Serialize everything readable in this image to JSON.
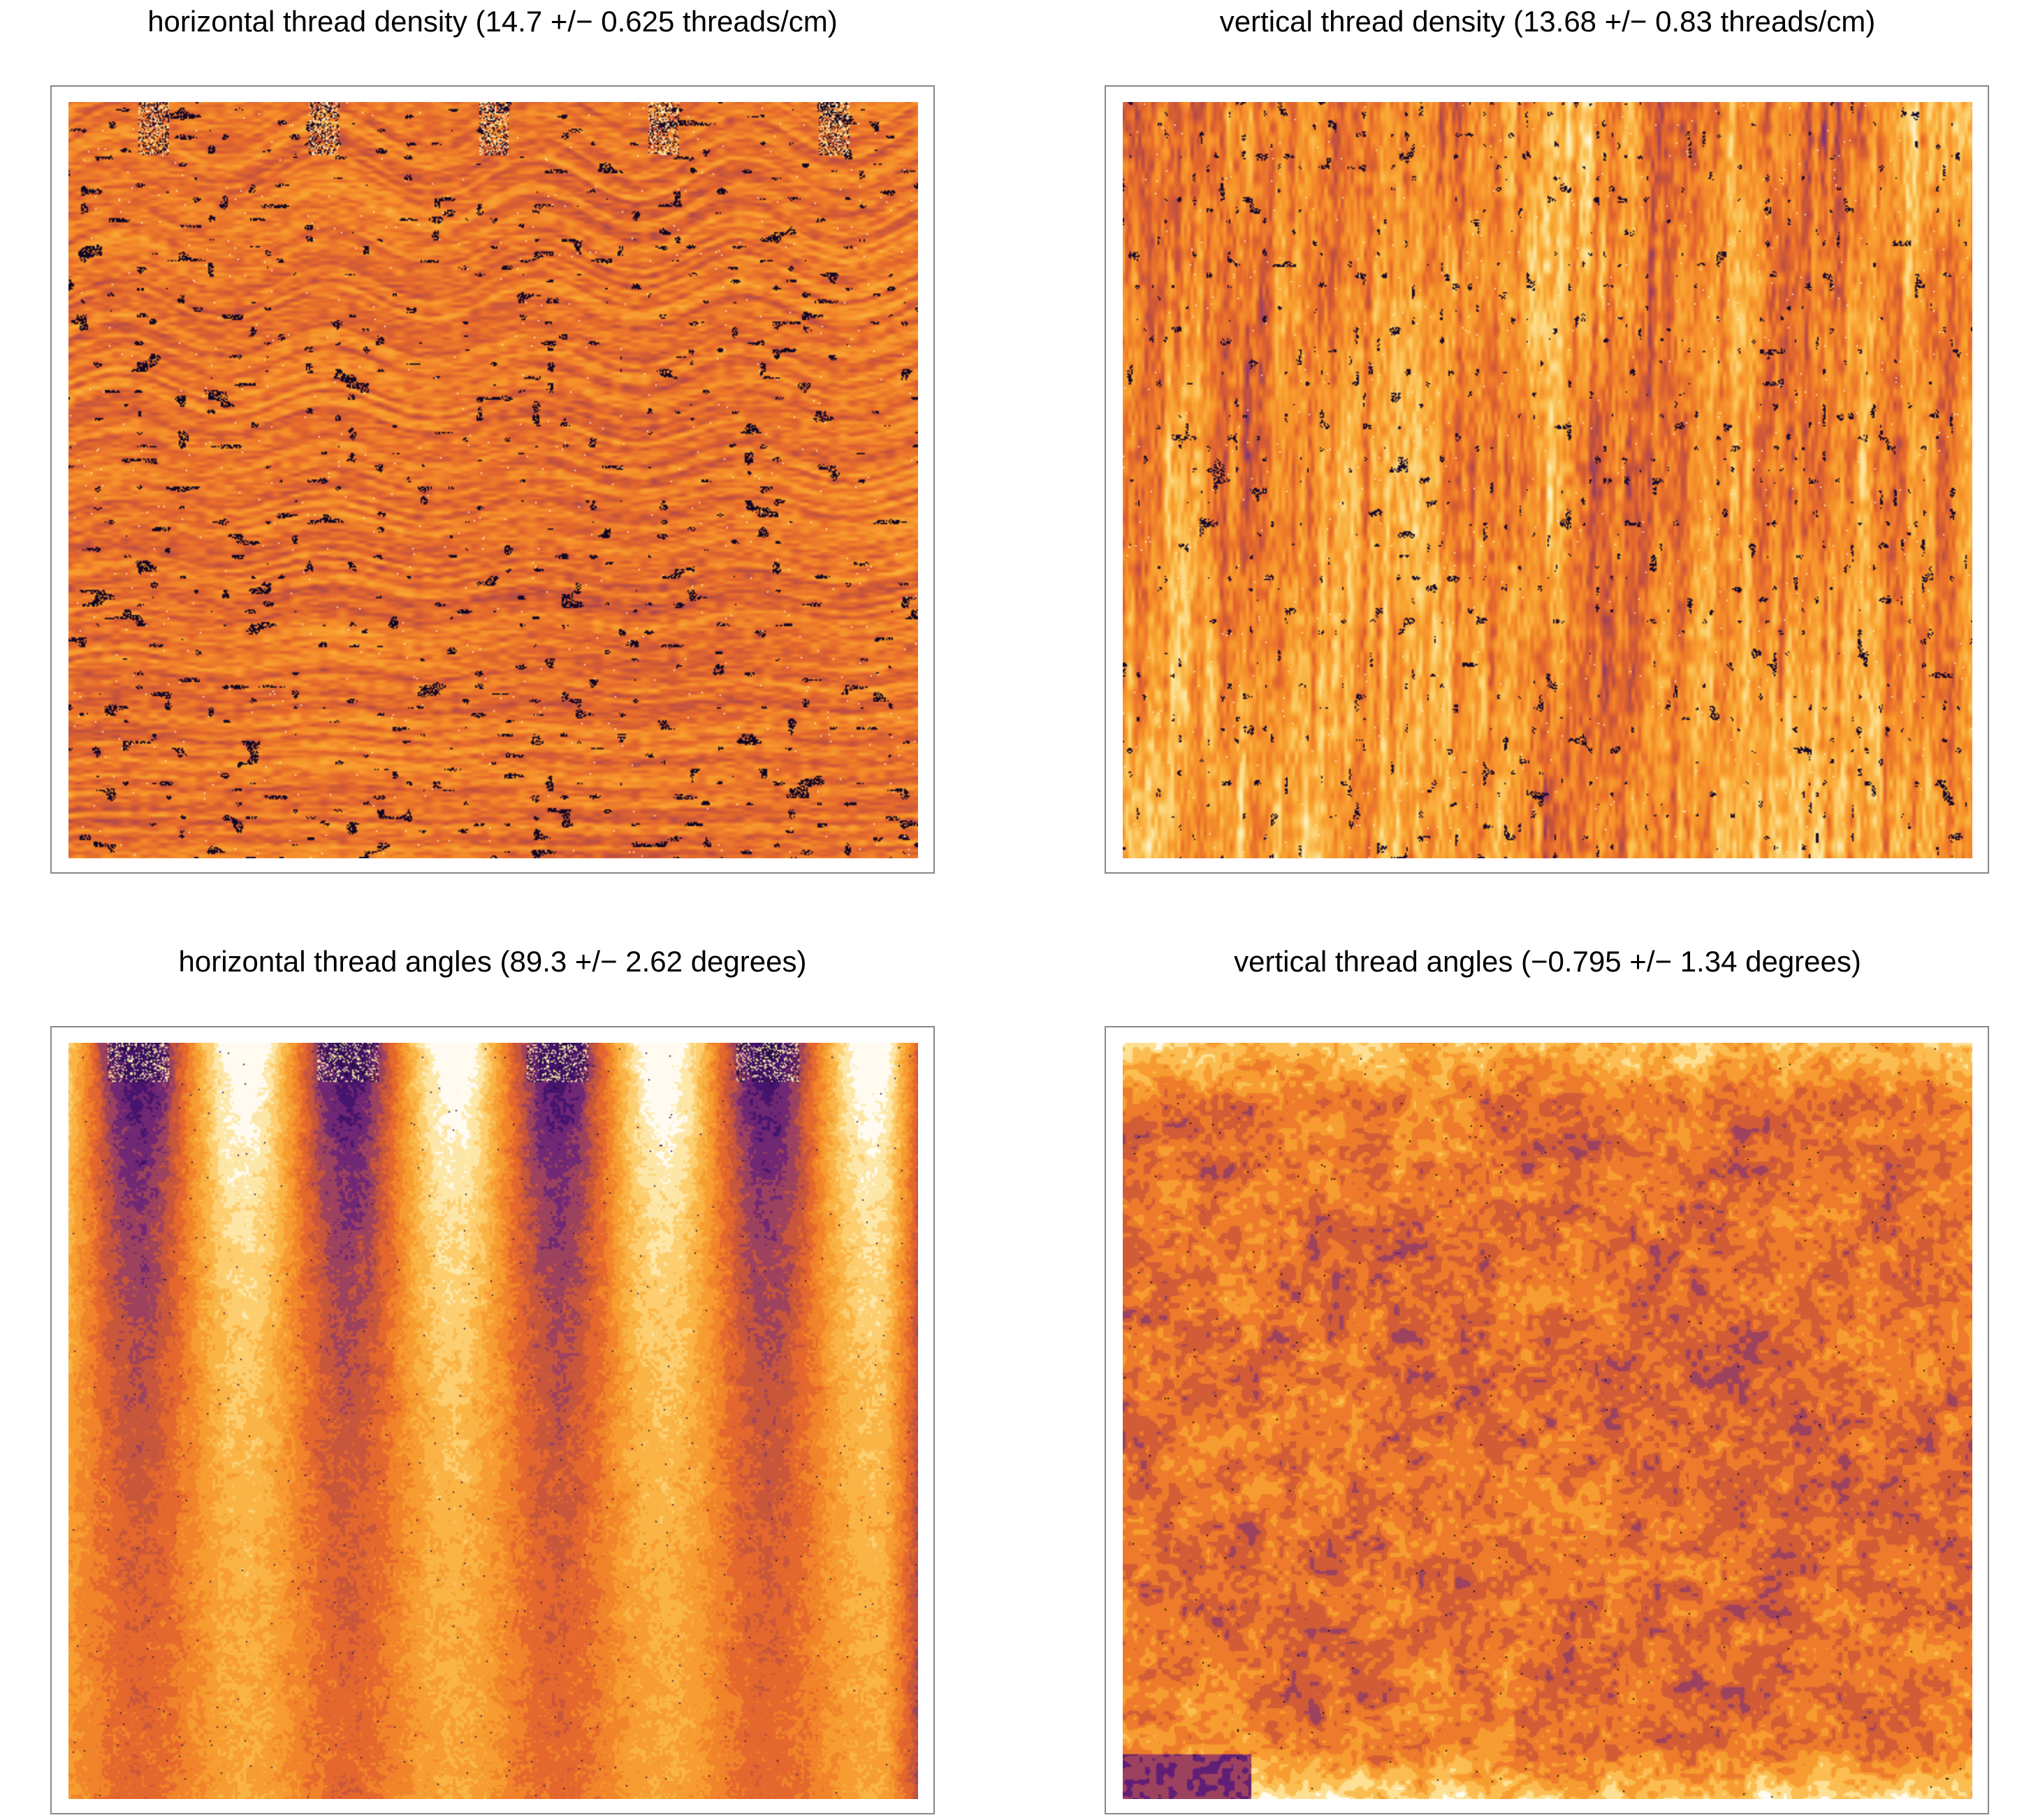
{
  "palette": [
    "#000004",
    "#2b0f54",
    "#55167a",
    "#8a3a6e",
    "#c2523e",
    "#e4682d",
    "#f48a2a",
    "#f9a533",
    "#fcc45a",
    "#fde39a",
    "#fffbf0"
  ],
  "chart_data": [
    {
      "type": "heatmap",
      "title": "horizontal thread density (14.7 +/− 0.625 threads/cm)",
      "mean": 14.7,
      "std": 0.625,
      "unit": "threads/cm",
      "pattern": "horizontal-stripes",
      "colormap": "inferno"
    },
    {
      "type": "heatmap",
      "title": "vertical thread density (13.68 +/− 0.83 threads/cm)",
      "mean": 13.68,
      "std": 0.83,
      "unit": "threads/cm",
      "pattern": "vertical-stripes",
      "colormap": "inferno"
    },
    {
      "type": "heatmap",
      "title": "horizontal thread angles (89.3 +/− 2.62 degrees)",
      "mean": 89.3,
      "std": 2.62,
      "unit": "degrees",
      "pattern": "periodic-vertical-bands",
      "colormap": "inferno"
    },
    {
      "type": "heatmap",
      "title": "vertical thread angles (−0.795 +/− 1.34 degrees)",
      "mean": -0.795,
      "std": 1.34,
      "unit": "degrees",
      "pattern": "blotchy-texture",
      "colormap": "inferno"
    }
  ]
}
